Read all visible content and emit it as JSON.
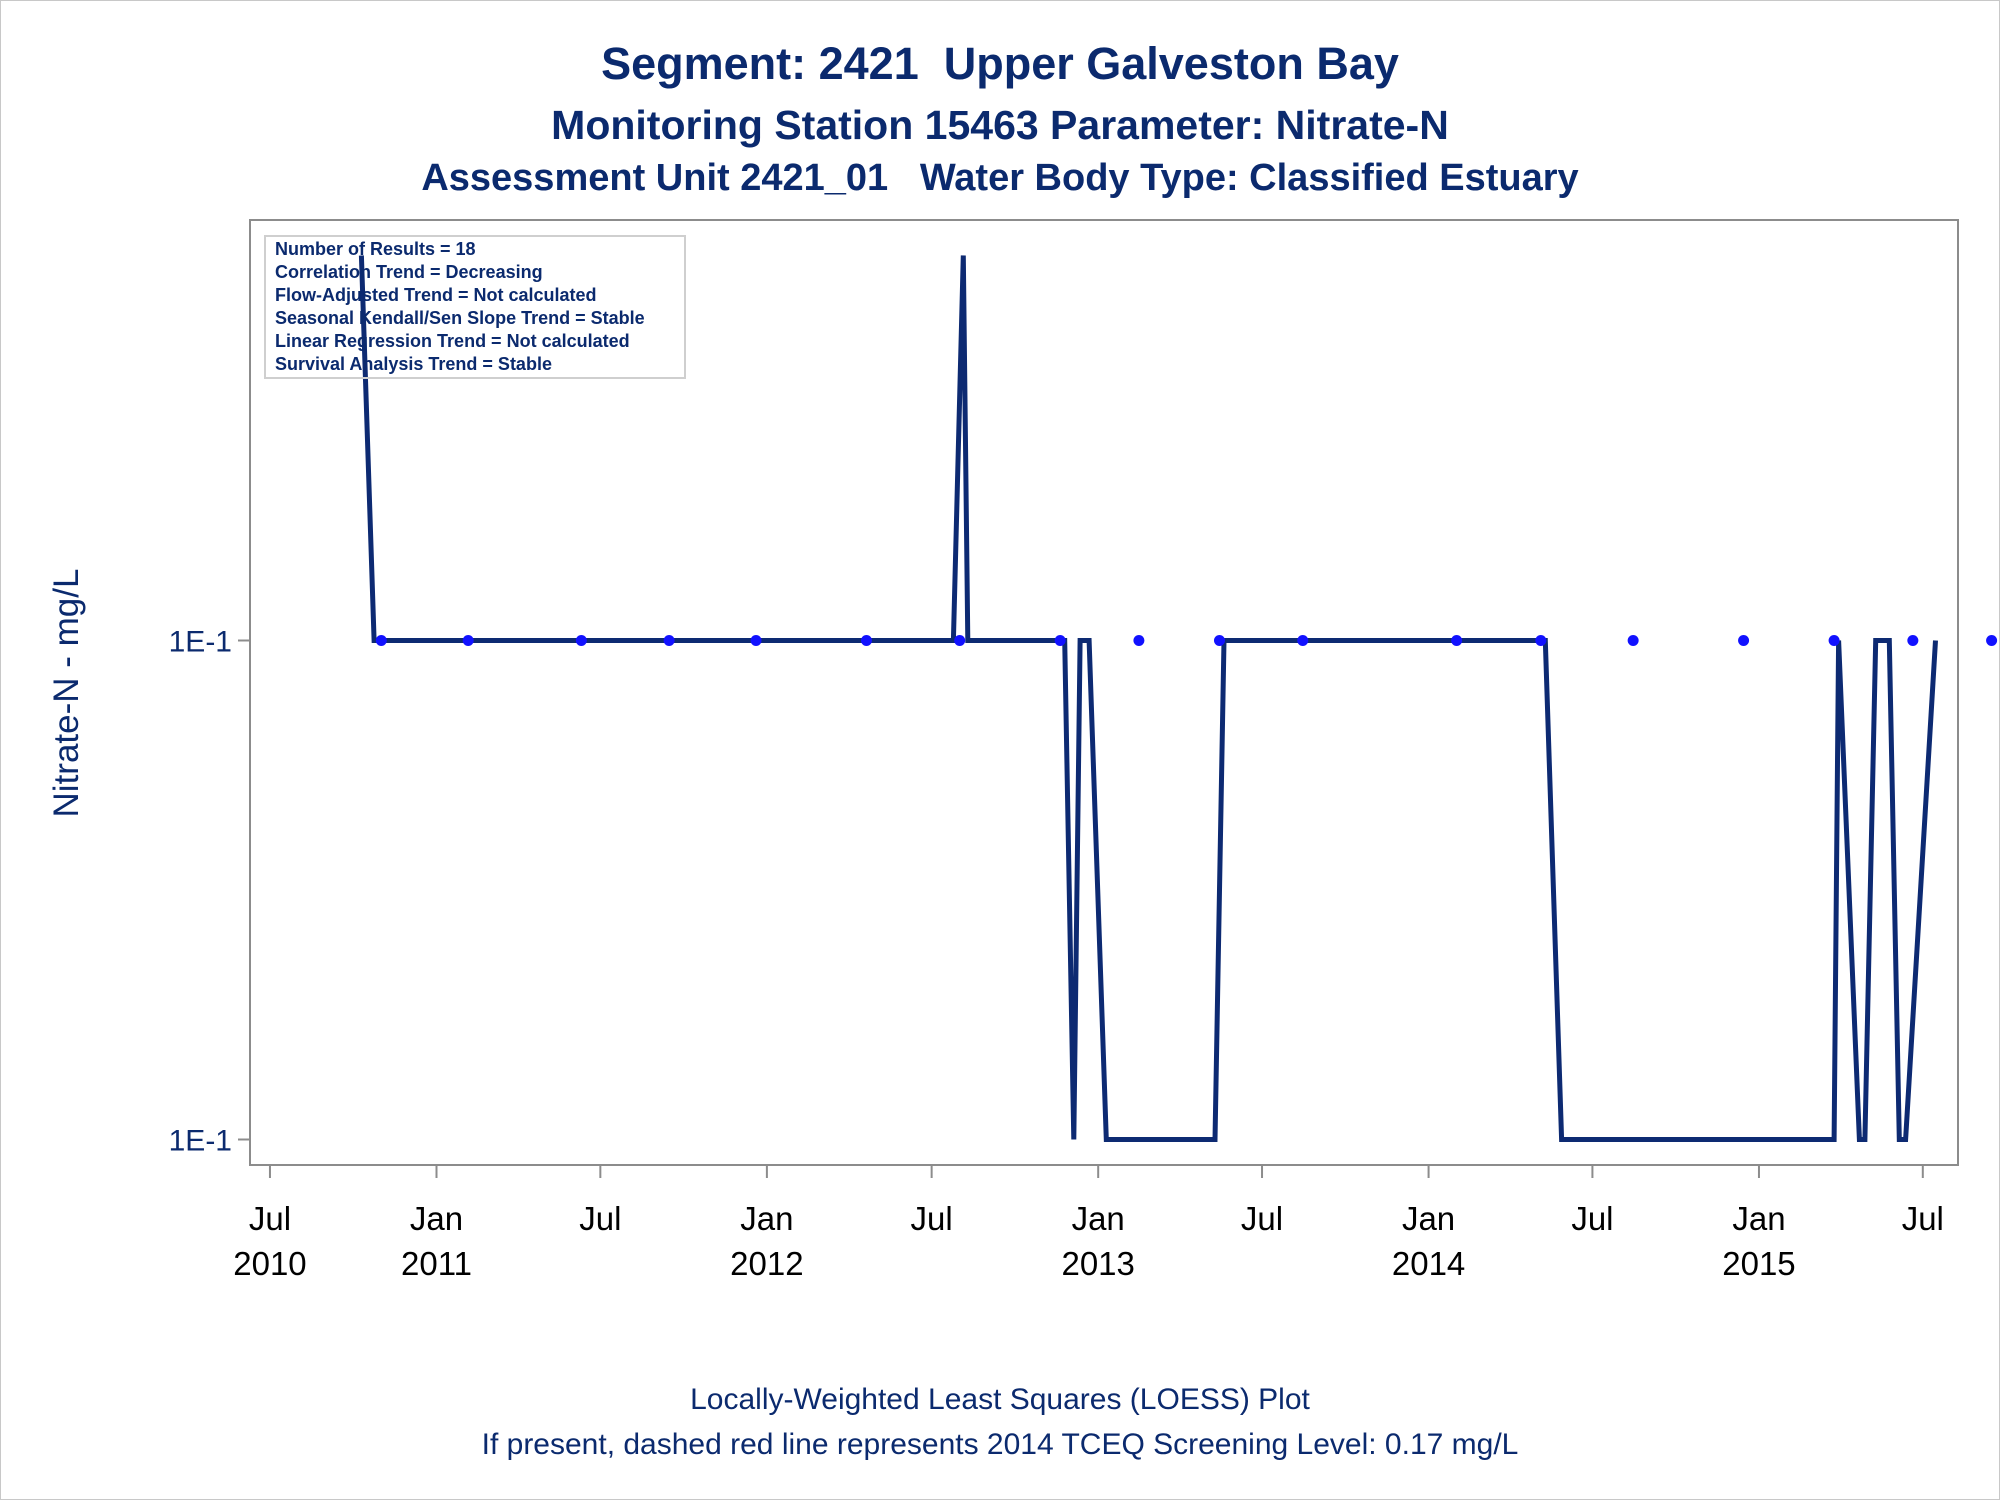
{
  "titles": {
    "line1": "Segment: 2421  Upper Galveston Bay",
    "line2": "Monitoring Station 15463 Parameter: Nitrate-N",
    "line3": "Assessment Unit 2421_01   Water Body Type: Classified Estuary"
  },
  "footnotes": {
    "line1": "Locally-Weighted Least Squares (LOESS) Plot",
    "line2": "If present, dashed red line represents 2014 TCEQ Screening Level: 0.17 mg/L"
  },
  "colors": {
    "text": "#0b2a6e",
    "loess_line": "#0d2a72",
    "points": "#1111ff",
    "axis": "#8c8c8c"
  },
  "chart_data": {
    "type": "line",
    "ylabel": "Nitrate-N - mg/L",
    "xlabel": "",
    "x_ticks": [
      {
        "date": "2010-07-01",
        "label": [
          "Jul",
          "2010"
        ]
      },
      {
        "date": "2011-01-01",
        "label": [
          "Jan",
          "2011"
        ]
      },
      {
        "date": "2011-07-01",
        "label": [
          "Jul",
          ""
        ]
      },
      {
        "date": "2012-01-01",
        "label": [
          "Jan",
          "2012"
        ]
      },
      {
        "date": "2012-07-01",
        "label": [
          "Jul",
          ""
        ]
      },
      {
        "date": "2013-01-01",
        "label": [
          "Jan",
          "2013"
        ]
      },
      {
        "date": "2013-07-01",
        "label": [
          "Jul",
          ""
        ]
      },
      {
        "date": "2014-01-01",
        "label": [
          "Jan",
          "2014"
        ]
      },
      {
        "date": "2014-07-01",
        "label": [
          "Jul",
          ""
        ]
      },
      {
        "date": "2015-01-01",
        "label": [
          "Jan",
          "2015"
        ]
      },
      {
        "date": "2015-07-01",
        "label": [
          "Jul",
          ""
        ]
      }
    ],
    "xlim": [
      "2010-06-20",
      "2015-07-20"
    ],
    "y_scale": "log",
    "y_ticks": [
      {
        "value": 0.1,
        "label": "1E-1"
      },
      {
        "value": 0.096,
        "label": "1E-1"
      }
    ],
    "ylim": [
      0.0958,
      0.1035
    ],
    "annotation": [
      "Number of Results = 18",
      "Correlation Trend = Decreasing",
      "Flow-Adjusted Trend = Not calculated",
      "Seasonal Kendall/Sen Slope Trend = Stable",
      "Linear Regression Trend = Not calculated",
      "Survival Analysis Trend = Stable"
    ],
    "annotation_position": "top-left",
    "series": [
      {
        "kind": "scatter",
        "x": [
          "2010-11-01",
          "2011-02-05",
          "2011-06-10",
          "2011-09-15",
          "2011-12-20",
          "2012-04-20",
          "2012-08-01",
          "2012-11-20",
          "2013-02-15",
          "2013-05-15",
          "2013-08-15",
          "2014-02-01",
          "2014-05-05",
          "2014-08-15",
          "2014-12-15",
          "2015-03-25",
          "2015-06-20",
          "2015-09-15"
        ],
        "y": [
          0.1,
          0.1,
          0.1,
          0.1,
          0.1,
          0.1,
          0.1,
          0.1,
          0.1,
          0.1,
          0.1,
          0.1,
          0.1,
          0.1,
          0.1,
          0.1,
          0.1,
          0.1
        ]
      },
      {
        "kind": "line",
        "x": [
          "2010-10-10",
          "2010-10-24",
          "2011-01-01",
          "2012-03-01",
          "2012-07-15",
          "2012-07-25",
          "2012-08-05",
          "2012-08-10",
          "2012-11-01",
          "2012-11-25",
          "2012-12-05",
          "2012-12-12",
          "2012-12-22",
          "2013-01-10",
          "2013-05-10",
          "2013-05-20",
          "2014-05-10",
          "2014-05-28",
          "2015-03-15",
          "2015-03-25",
          "2015-03-30",
          "2015-04-22",
          "2015-04-28",
          "2015-05-10",
          "2015-05-25",
          "2015-06-05",
          "2015-06-12",
          "2015-07-15"
        ],
        "y": [
          0.1032,
          0.1,
          0.1,
          0.1,
          0.1,
          0.1,
          0.1032,
          0.1,
          0.1,
          0.1,
          0.096,
          0.1,
          0.1,
          0.096,
          0.096,
          0.1,
          0.1,
          0.096,
          0.096,
          0.096,
          0.1,
          0.096,
          0.096,
          0.1,
          0.1,
          0.096,
          0.096,
          0.1
        ]
      }
    ]
  }
}
